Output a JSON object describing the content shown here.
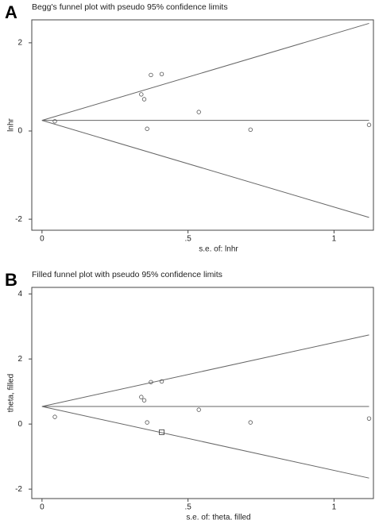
{
  "chart_data": [
    {
      "type": "scatter",
      "panel_label": "A",
      "title": "Begg's funnel plot with pseudo 95% confidence limits",
      "x_label": "s.e. of: lnhr",
      "y_label": "lnhr",
      "xlim": [
        -0.035,
        1.135
      ],
      "ylim": [
        -2.25,
        2.52
      ],
      "xticks": [
        0,
        {
          "value": 0.5,
          "label": ".5"
        },
        1
      ],
      "yticks": [
        -2,
        0,
        2
      ],
      "lines": [
        {
          "x": [
            0,
            1.12
          ],
          "values": [
            0.24,
            0.24
          ]
        },
        {
          "x": [
            0,
            1.12
          ],
          "values": [
            0.24,
            2.44
          ]
        },
        {
          "x": [
            0,
            1.12
          ],
          "values": [
            0.24,
            -1.96
          ]
        }
      ],
      "series": [
        {
          "marker": "circle",
          "color": "#555555",
          "x": [
            0.044,
            0.34,
            0.35,
            0.373,
            0.41,
            0.36,
            0.537,
            0.714,
            1.12
          ],
          "values": [
            0.22,
            0.83,
            0.72,
            1.27,
            1.29,
            0.05,
            0.43,
            0.03,
            0.14
          ]
        }
      ]
    },
    {
      "type": "scatter",
      "panel_label": "B",
      "title": "Filled funnel plot with pseudo 95% confidence limits",
      "x_label": "s.e. of: theta, filled",
      "y_label": "theta, filled",
      "xlim": [
        -0.035,
        1.135
      ],
      "ylim": [
        -2.29,
        4.2
      ],
      "xticks": [
        0,
        {
          "value": 0.5,
          "label": ".5"
        },
        1
      ],
      "yticks": [
        -2,
        0,
        2,
        4
      ],
      "lines": [
        {
          "x": [
            0,
            1.12
          ],
          "values": [
            0.54,
            0.54
          ]
        },
        {
          "x": [
            0,
            1.12
          ],
          "values": [
            0.54,
            2.74
          ]
        },
        {
          "x": [
            0,
            1.12
          ],
          "values": [
            0.54,
            -1.66
          ]
        }
      ],
      "series": [
        {
          "marker": "circle",
          "color": "#555555",
          "x": [
            0.044,
            0.34,
            0.35,
            0.373,
            0.41,
            0.36,
            0.537,
            0.714,
            1.12
          ],
          "values": [
            0.22,
            0.83,
            0.73,
            1.29,
            1.31,
            0.05,
            0.44,
            0.05,
            0.17
          ]
        },
        {
          "marker": "square",
          "color": "#333333",
          "x": [
            0.41
          ],
          "values": [
            -0.25
          ]
        }
      ]
    }
  ]
}
